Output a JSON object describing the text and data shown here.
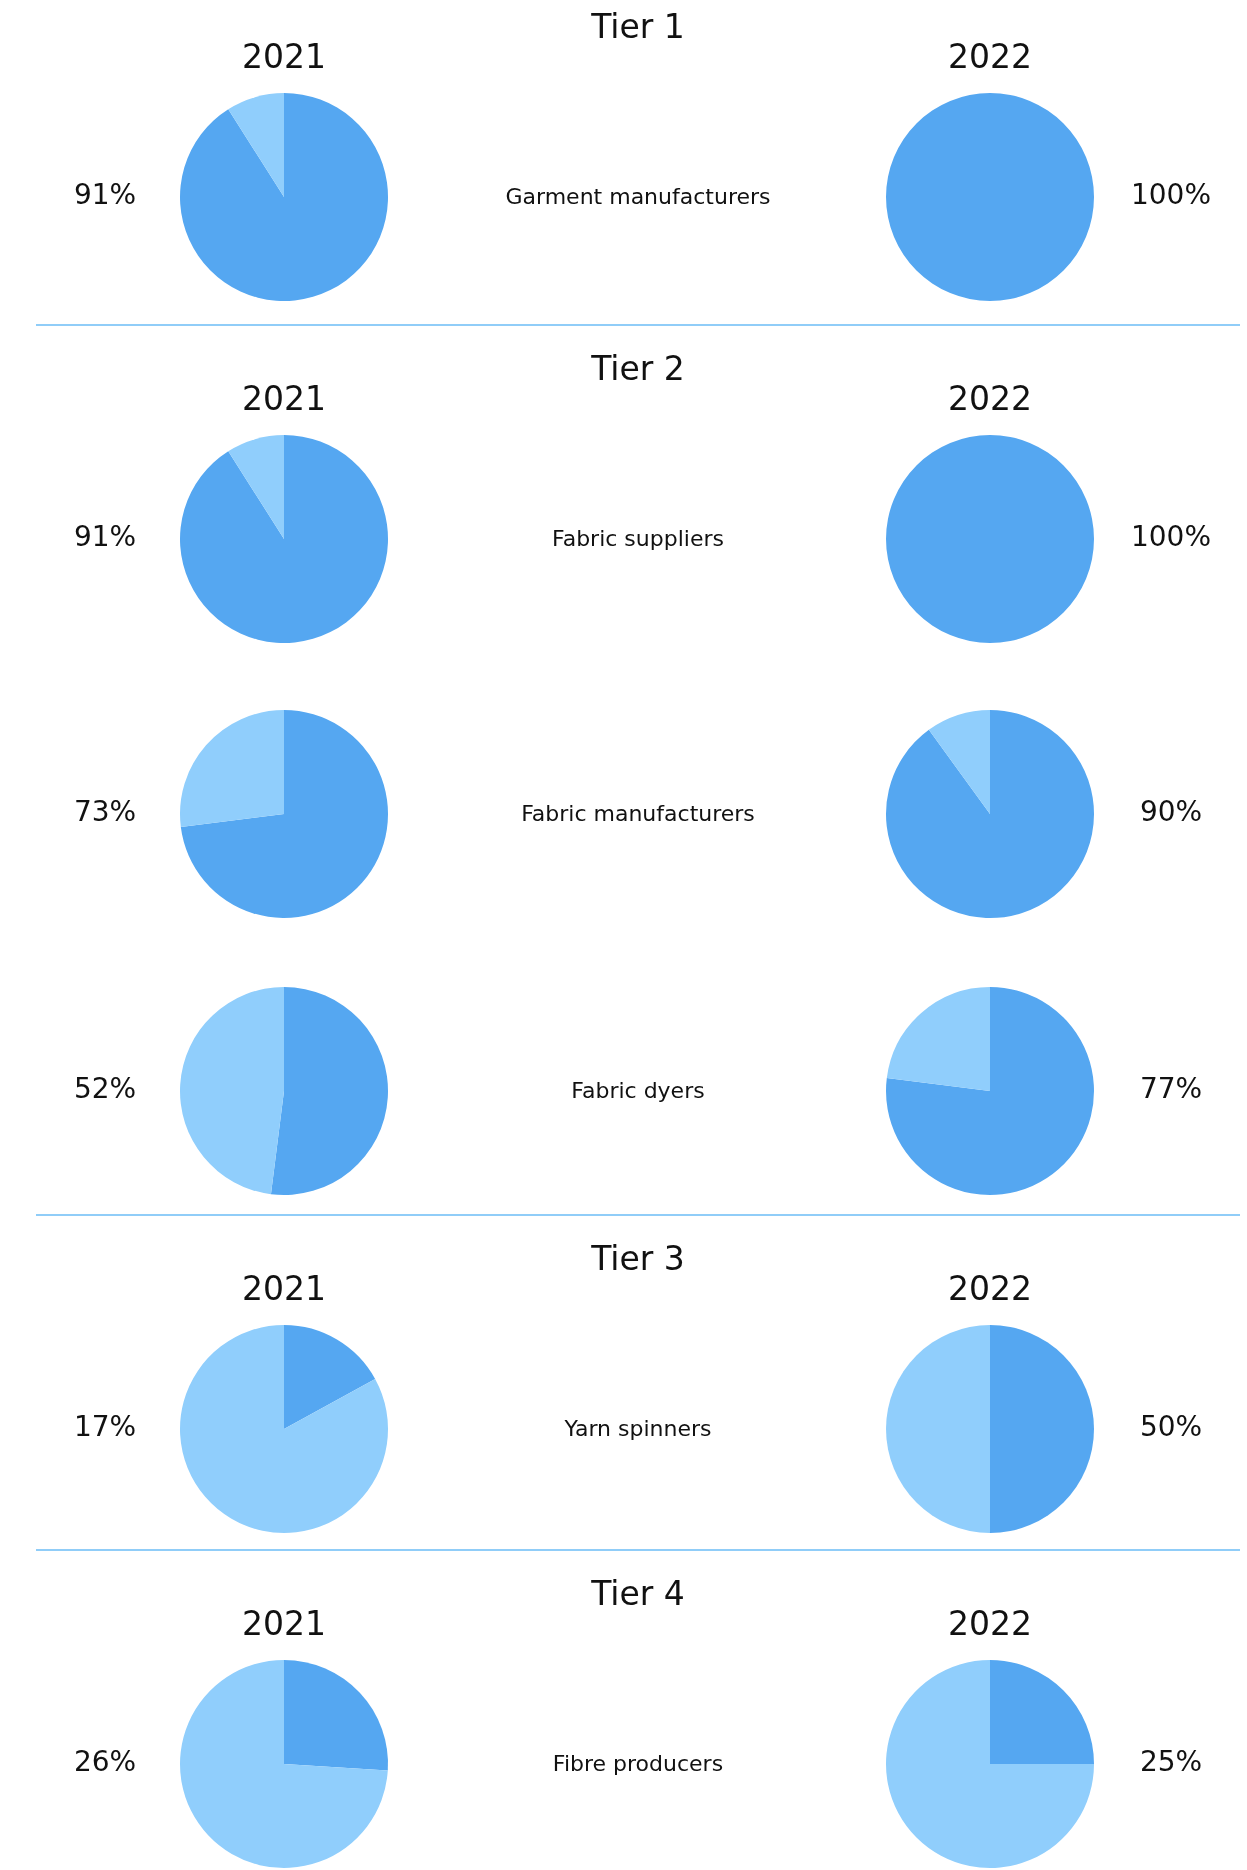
{
  "chart_data": [
    {
      "type": "pie",
      "title": "2021",
      "categories": [
        null,
        null
      ],
      "values": [
        91,
        9
      ],
      "colors": [
        "#55a7f1",
        "#90cefc"
      ],
      "annotations": [
        "91%"
      ]
    },
    {
      "type": "other",
      "title": "Tier 1",
      "annotations": [
        "Garment manufacturers"
      ]
    },
    {
      "type": "pie",
      "title": "2022",
      "categories": [
        null,
        null
      ],
      "values": [
        100,
        0
      ],
      "colors": [
        "#55a7f1",
        "#90cefc"
      ],
      "annotations": [
        "100%"
      ]
    },
    {
      "type": "pie",
      "title": "2021",
      "categories": [
        null,
        null
      ],
      "values": [
        91,
        9
      ],
      "colors": [
        "#55a7f1",
        "#90cefc"
      ],
      "annotations": [
        "91%"
      ]
    },
    {
      "type": "other",
      "title": "Tier 2",
      "annotations": [
        "Fabric suppliers"
      ]
    },
    {
      "type": "pie",
      "title": "2022",
      "categories": [
        null,
        null
      ],
      "values": [
        100,
        0
      ],
      "colors": [
        "#55a7f1",
        "#90cefc"
      ],
      "annotations": [
        "100%"
      ]
    },
    {
      "type": "pie",
      "categories": [
        null,
        null
      ],
      "values": [
        73,
        27
      ],
      "colors": [
        "#55a7f1",
        "#90cefc"
      ],
      "annotations": [
        "73%"
      ]
    },
    {
      "type": "other",
      "annotations": [
        "Fabric manufacturers"
      ]
    },
    {
      "type": "pie",
      "categories": [
        null,
        null
      ],
      "values": [
        90,
        10
      ],
      "colors": [
        "#55a7f1",
        "#90cefc"
      ],
      "annotations": [
        "90%"
      ]
    },
    {
      "type": "pie",
      "categories": [
        null,
        null
      ],
      "values": [
        52,
        48
      ],
      "colors": [
        "#55a7f1",
        "#90cefc"
      ],
      "annotations": [
        "52%"
      ]
    },
    {
      "type": "other",
      "annotations": [
        "Fabric dyers"
      ]
    },
    {
      "type": "pie",
      "categories": [
        null,
        null
      ],
      "values": [
        77,
        23
      ],
      "colors": [
        "#55a7f1",
        "#90cefc"
      ],
      "annotations": [
        "77%"
      ]
    },
    {
      "type": "pie",
      "title": "2021",
      "categories": [
        null,
        null
      ],
      "values": [
        17,
        83
      ],
      "colors": [
        "#55a7f1",
        "#90cefc"
      ],
      "annotations": [
        "17%"
      ]
    },
    {
      "type": "other",
      "title": "Tier 3",
      "annotations": [
        "Yarn spinners"
      ]
    },
    {
      "type": "pie",
      "title": "2022",
      "categories": [
        null,
        null
      ],
      "values": [
        50,
        50
      ],
      "colors": [
        "#55a7f1",
        "#90cefc"
      ],
      "annotations": [
        "50%"
      ]
    },
    {
      "type": "pie",
      "title": "2021",
      "categories": [
        null,
        null
      ],
      "values": [
        26,
        74
      ],
      "colors": [
        "#55a7f1",
        "#90cefc"
      ],
      "annotations": [
        "26%"
      ]
    },
    {
      "type": "other",
      "title": "Tier 4",
      "annotations": [
        "Fibre producers"
      ]
    },
    {
      "type": "pie",
      "title": "2022",
      "categories": [
        null,
        null
      ],
      "values": [
        25,
        75
      ],
      "colors": [
        "#55a7f1",
        "#90cefc"
      ],
      "annotations": [
        "25%"
      ]
    }
  ]
}
